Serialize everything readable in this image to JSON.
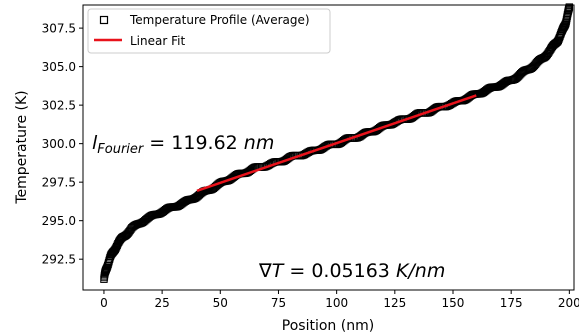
{
  "chart_data": {
    "type": "scatter",
    "xlabel": "Position (nm)",
    "ylabel": "Temperature (K)",
    "xlim": [
      -9,
      202
    ],
    "ylim": [
      290.5,
      309.0
    ],
    "xticks": [
      0,
      25,
      50,
      75,
      100,
      125,
      150,
      175,
      200
    ],
    "yticks": [
      292.5,
      295.0,
      297.5,
      300.0,
      302.5,
      305.0,
      307.5
    ],
    "xtick_labels": [
      "0",
      "25",
      "50",
      "75",
      "100",
      "125",
      "150",
      "175",
      "200"
    ],
    "ytick_labels": [
      "292.5",
      "295.0",
      "297.5",
      "300.0",
      "302.5",
      "305.0",
      "307.5"
    ],
    "grid": false,
    "legend_placement": "top-left",
    "series": [
      {
        "name": "Temperature Profile (Average)",
        "marker": "square",
        "color": "#000000",
        "points": [
          [
            0,
            291.2
          ],
          [
            0.5,
            291.6
          ],
          [
            1,
            291.9
          ],
          [
            2,
            292.3
          ],
          [
            3,
            292.7
          ],
          [
            4,
            293.0
          ],
          [
            6,
            293.5
          ],
          [
            8,
            293.9
          ],
          [
            10,
            294.2
          ],
          [
            12,
            294.5
          ],
          [
            15,
            294.8
          ],
          [
            18,
            295.1
          ],
          [
            21,
            295.3
          ],
          [
            25,
            295.6
          ],
          [
            30,
            295.9
          ],
          [
            35,
            296.2
          ],
          [
            40,
            296.6
          ],
          [
            45,
            297.0
          ],
          [
            50,
            297.4
          ],
          [
            55,
            297.8
          ],
          [
            60,
            298.1
          ],
          [
            65,
            298.4
          ],
          [
            70,
            298.6
          ],
          [
            75,
            298.8
          ],
          [
            80,
            299.1
          ],
          [
            85,
            299.3
          ],
          [
            90,
            299.5
          ],
          [
            95,
            299.8
          ],
          [
            100,
            300.0
          ],
          [
            105,
            300.3
          ],
          [
            110,
            300.5
          ],
          [
            115,
            300.8
          ],
          [
            120,
            301.1
          ],
          [
            125,
            301.4
          ],
          [
            130,
            301.6
          ],
          [
            135,
            301.9
          ],
          [
            140,
            302.1
          ],
          [
            145,
            302.4
          ],
          [
            150,
            302.6
          ],
          [
            155,
            302.9
          ],
          [
            160,
            303.2
          ],
          [
            165,
            303.5
          ],
          [
            170,
            303.8
          ],
          [
            175,
            304.1
          ],
          [
            180,
            304.6
          ],
          [
            185,
            305.1
          ],
          [
            189,
            305.6
          ],
          [
            192,
            306.1
          ],
          [
            195,
            306.7
          ],
          [
            197,
            307.3
          ],
          [
            198.5,
            307.9
          ],
          [
            199.5,
            308.5
          ],
          [
            200,
            308.9
          ]
        ]
      },
      {
        "name": "Linear Fit",
        "color": "#e8121b",
        "x": [
          40,
          160
        ],
        "y": [
          296.94,
          303.13
        ]
      }
    ],
    "annotations": [
      {
        "main": "l",
        "sub": "Fourier",
        "rest": " = 119.62 ",
        "unit": "nm",
        "anchor": [
          -5,
          300.3
        ]
      },
      {
        "main": "∇T",
        "sub": "",
        "rest": " = 0.05163 ",
        "unit": "K/nm",
        "anchor": [
          67,
          291.1
        ]
      }
    ]
  }
}
